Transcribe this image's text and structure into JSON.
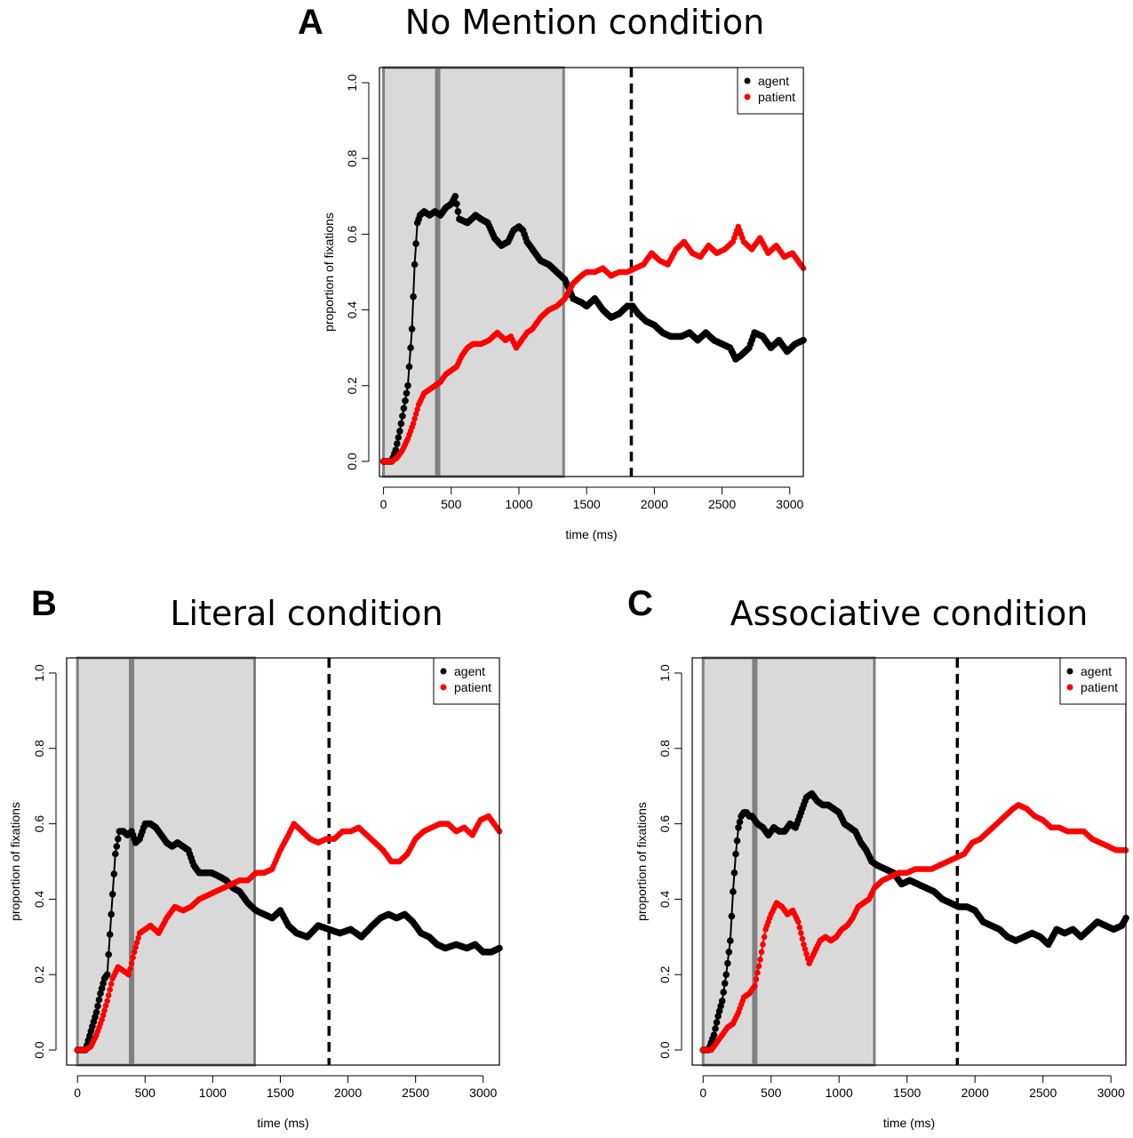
{
  "chart_data": [
    {
      "type": "line",
      "panel": "A",
      "title": "No Mention condition",
      "xlabel": "time (ms)",
      "ylabel": "proportion of fixations",
      "xlim": [
        -30,
        3100
      ],
      "ylim": [
        -0.04,
        1.04
      ],
      "xticks": [
        0,
        500,
        1000,
        1500,
        2000,
        2500,
        3000
      ],
      "yticks": [
        0.0,
        0.2,
        0.4,
        0.6,
        0.8,
        1.0
      ],
      "shaded_regions": [
        [
          0,
          400
        ],
        [
          400,
          1330
        ]
      ],
      "dashed_vline": 1830,
      "legend": {
        "position": "top-right",
        "entries": [
          "agent",
          "patient"
        ]
      },
      "colors": {
        "agent": "#000000",
        "patient": "#ff0000"
      },
      "series": [
        {
          "name": "agent",
          "x": [
            0,
            60,
            90,
            120,
            150,
            180,
            210,
            230,
            250,
            270,
            300,
            340,
            380,
            420,
            460,
            500,
            530,
            560,
            620,
            680,
            720,
            770,
            820,
            870,
            920,
            960,
            1000,
            1030,
            1060,
            1100,
            1160,
            1220,
            1280,
            1340,
            1400,
            1460,
            1500,
            1560,
            1620,
            1680,
            1740,
            1800,
            1840,
            1880,
            1940,
            2000,
            2060,
            2120,
            2200,
            2260,
            2320,
            2380,
            2440,
            2500,
            2560,
            2600,
            2640,
            2700,
            2740,
            2800,
            2860,
            2920,
            2980,
            3040,
            3100
          ],
          "values": [
            0.0,
            0.0,
            0.03,
            0.08,
            0.14,
            0.2,
            0.35,
            0.52,
            0.63,
            0.65,
            0.66,
            0.65,
            0.66,
            0.65,
            0.67,
            0.68,
            0.7,
            0.64,
            0.63,
            0.65,
            0.64,
            0.63,
            0.59,
            0.57,
            0.58,
            0.61,
            0.62,
            0.61,
            0.58,
            0.56,
            0.53,
            0.52,
            0.5,
            0.48,
            0.43,
            0.42,
            0.41,
            0.43,
            0.4,
            0.38,
            0.39,
            0.41,
            0.41,
            0.39,
            0.37,
            0.36,
            0.34,
            0.33,
            0.33,
            0.34,
            0.32,
            0.34,
            0.32,
            0.31,
            0.3,
            0.27,
            0.28,
            0.3,
            0.34,
            0.33,
            0.3,
            0.32,
            0.29,
            0.31,
            0.32
          ]
        },
        {
          "name": "patient",
          "x": [
            0,
            60,
            100,
            140,
            180,
            220,
            260,
            300,
            340,
            380,
            420,
            460,
            500,
            540,
            580,
            620,
            660,
            720,
            780,
            840,
            900,
            940,
            980,
            1020,
            1060,
            1100,
            1160,
            1220,
            1280,
            1340,
            1400,
            1460,
            1500,
            1560,
            1620,
            1680,
            1740,
            1800,
            1860,
            1920,
            1980,
            2040,
            2100,
            2160,
            2220,
            2280,
            2340,
            2400,
            2460,
            2520,
            2580,
            2620,
            2660,
            2720,
            2780,
            2840,
            2900,
            2960,
            3020,
            3100
          ],
          "values": [
            0.0,
            0.0,
            0.01,
            0.03,
            0.06,
            0.1,
            0.15,
            0.18,
            0.19,
            0.2,
            0.21,
            0.23,
            0.24,
            0.25,
            0.28,
            0.3,
            0.31,
            0.31,
            0.32,
            0.34,
            0.32,
            0.33,
            0.3,
            0.32,
            0.34,
            0.35,
            0.38,
            0.4,
            0.41,
            0.43,
            0.47,
            0.49,
            0.5,
            0.5,
            0.51,
            0.49,
            0.5,
            0.5,
            0.51,
            0.52,
            0.55,
            0.53,
            0.52,
            0.56,
            0.58,
            0.55,
            0.54,
            0.57,
            0.55,
            0.56,
            0.58,
            0.62,
            0.58,
            0.56,
            0.59,
            0.55,
            0.57,
            0.54,
            0.55,
            0.51
          ]
        }
      ]
    },
    {
      "type": "line",
      "panel": "B",
      "title": "Literal condition",
      "xlabel": "time (ms)",
      "ylabel": "proportion of fixations",
      "xlim": [
        -80,
        3120
      ],
      "ylim": [
        -0.04,
        1.04
      ],
      "xticks": [
        0,
        500,
        1000,
        1500,
        2000,
        2500,
        3000
      ],
      "yticks": [
        0.0,
        0.2,
        0.4,
        0.6,
        0.8,
        1.0
      ],
      "shaded_regions": [
        [
          0,
          400
        ],
        [
          400,
          1310
        ]
      ],
      "dashed_vline": 1860,
      "legend": {
        "position": "top-right",
        "entries": [
          "agent",
          "patient"
        ]
      },
      "colors": {
        "agent": "#000000",
        "patient": "#ff0000"
      },
      "series": [
        {
          "name": "agent",
          "x": [
            0,
            60,
            100,
            140,
            170,
            200,
            220,
            250,
            280,
            310,
            340,
            370,
            400,
            430,
            460,
            500,
            540,
            580,
            620,
            660,
            700,
            740,
            780,
            820,
            860,
            900,
            940,
            990,
            1050,
            1100,
            1150,
            1200,
            1260,
            1320,
            1380,
            1440,
            1500,
            1560,
            1620,
            1700,
            1780,
            1860,
            1940,
            2020,
            2100,
            2180,
            2240,
            2300,
            2360,
            2420,
            2480,
            2540,
            2600,
            2660,
            2720,
            2800,
            2880,
            2940,
            3000,
            3060,
            3120
          ],
          "values": [
            0.0,
            0.0,
            0.05,
            0.1,
            0.15,
            0.19,
            0.2,
            0.36,
            0.52,
            0.58,
            0.58,
            0.57,
            0.58,
            0.55,
            0.56,
            0.6,
            0.6,
            0.59,
            0.57,
            0.55,
            0.54,
            0.55,
            0.54,
            0.53,
            0.49,
            0.47,
            0.47,
            0.47,
            0.46,
            0.45,
            0.43,
            0.42,
            0.39,
            0.37,
            0.36,
            0.35,
            0.37,
            0.33,
            0.31,
            0.3,
            0.33,
            0.32,
            0.31,
            0.32,
            0.3,
            0.33,
            0.35,
            0.36,
            0.35,
            0.36,
            0.34,
            0.31,
            0.3,
            0.28,
            0.27,
            0.28,
            0.27,
            0.28,
            0.26,
            0.26,
            0.27
          ]
        },
        {
          "name": "patient",
          "x": [
            0,
            60,
            100,
            140,
            180,
            220,
            260,
            300,
            340,
            380,
            420,
            460,
            500,
            540,
            600,
            660,
            720,
            780,
            840,
            900,
            960,
            1020,
            1080,
            1140,
            1200,
            1260,
            1320,
            1380,
            1440,
            1500,
            1560,
            1600,
            1660,
            1720,
            1780,
            1840,
            1900,
            1960,
            2020,
            2080,
            2140,
            2200,
            2260,
            2320,
            2380,
            2440,
            2500,
            2560,
            2620,
            2680,
            2740,
            2800,
            2860,
            2920,
            2980,
            3040,
            3120
          ],
          "values": [
            0.0,
            0.0,
            0.01,
            0.04,
            0.08,
            0.13,
            0.19,
            0.22,
            0.21,
            0.2,
            0.26,
            0.31,
            0.32,
            0.33,
            0.31,
            0.35,
            0.38,
            0.37,
            0.38,
            0.4,
            0.41,
            0.42,
            0.43,
            0.44,
            0.45,
            0.45,
            0.47,
            0.47,
            0.48,
            0.53,
            0.57,
            0.6,
            0.58,
            0.56,
            0.55,
            0.56,
            0.56,
            0.58,
            0.58,
            0.59,
            0.57,
            0.55,
            0.53,
            0.5,
            0.5,
            0.52,
            0.56,
            0.58,
            0.59,
            0.6,
            0.6,
            0.58,
            0.59,
            0.57,
            0.61,
            0.62,
            0.58
          ]
        }
      ]
    },
    {
      "type": "line",
      "panel": "C",
      "title": "Associative condition",
      "xlabel": "time (ms)",
      "ylabel": "proportion of fixations",
      "xlim": [
        -80,
        3110
      ],
      "ylim": [
        -0.04,
        1.04
      ],
      "xticks": [
        0,
        500,
        1000,
        1500,
        2000,
        2500,
        3000
      ],
      "yticks": [
        0.0,
        0.2,
        0.4,
        0.6,
        0.8,
        1.0
      ],
      "shaded_regions": [
        [
          0,
          380
        ],
        [
          380,
          1260
        ]
      ],
      "dashed_vline": 1870,
      "legend": {
        "position": "top-right",
        "entries": [
          "agent",
          "patient"
        ]
      },
      "colors": {
        "agent": "#000000",
        "patient": "#ff0000"
      },
      "series": [
        {
          "name": "agent",
          "x": [
            0,
            40,
            80,
            110,
            140,
            170,
            200,
            220,
            240,
            260,
            280,
            300,
            320,
            340,
            360,
            400,
            440,
            480,
            520,
            560,
            600,
            640,
            680,
            720,
            760,
            800,
            840,
            880,
            920,
            960,
            1000,
            1040,
            1080,
            1120,
            1160,
            1200,
            1240,
            1280,
            1340,
            1400,
            1460,
            1520,
            1580,
            1640,
            1700,
            1760,
            1820,
            1880,
            1940,
            2000,
            2060,
            2120,
            2180,
            2240,
            2300,
            2360,
            2420,
            2480,
            2540,
            2600,
            2660,
            2720,
            2780,
            2840,
            2900,
            2960,
            3020,
            3080,
            3110
          ],
          "values": [
            0.0,
            0.0,
            0.04,
            0.09,
            0.13,
            0.2,
            0.29,
            0.42,
            0.52,
            0.59,
            0.62,
            0.63,
            0.63,
            0.62,
            0.62,
            0.6,
            0.59,
            0.57,
            0.59,
            0.58,
            0.58,
            0.6,
            0.59,
            0.63,
            0.67,
            0.68,
            0.66,
            0.65,
            0.65,
            0.64,
            0.63,
            0.6,
            0.59,
            0.58,
            0.55,
            0.53,
            0.5,
            0.49,
            0.48,
            0.47,
            0.44,
            0.45,
            0.44,
            0.43,
            0.42,
            0.4,
            0.39,
            0.38,
            0.38,
            0.37,
            0.34,
            0.33,
            0.32,
            0.3,
            0.29,
            0.3,
            0.31,
            0.3,
            0.28,
            0.32,
            0.31,
            0.32,
            0.3,
            0.32,
            0.34,
            0.33,
            0.32,
            0.33,
            0.35
          ]
        },
        {
          "name": "patient",
          "x": [
            0,
            60,
            100,
            140,
            180,
            220,
            260,
            300,
            340,
            380,
            420,
            460,
            500,
            540,
            580,
            620,
            660,
            700,
            740,
            780,
            820,
            860,
            900,
            940,
            980,
            1020,
            1060,
            1100,
            1140,
            1180,
            1220,
            1260,
            1320,
            1380,
            1440,
            1500,
            1560,
            1620,
            1680,
            1740,
            1800,
            1860,
            1920,
            1980,
            2040,
            2100,
            2160,
            2220,
            2280,
            2320,
            2380,
            2440,
            2500,
            2560,
            2620,
            2680,
            2740,
            2800,
            2860,
            2920,
            2980,
            3040,
            3110
          ],
          "values": [
            0.0,
            0.0,
            0.02,
            0.04,
            0.06,
            0.07,
            0.1,
            0.14,
            0.15,
            0.17,
            0.24,
            0.32,
            0.36,
            0.39,
            0.38,
            0.36,
            0.37,
            0.34,
            0.28,
            0.23,
            0.26,
            0.29,
            0.3,
            0.29,
            0.3,
            0.32,
            0.33,
            0.35,
            0.38,
            0.39,
            0.4,
            0.43,
            0.45,
            0.46,
            0.47,
            0.47,
            0.48,
            0.48,
            0.48,
            0.49,
            0.5,
            0.51,
            0.52,
            0.55,
            0.56,
            0.58,
            0.6,
            0.62,
            0.64,
            0.65,
            0.64,
            0.62,
            0.61,
            0.59,
            0.59,
            0.58,
            0.58,
            0.58,
            0.56,
            0.55,
            0.54,
            0.53,
            0.53
          ]
        }
      ]
    }
  ]
}
